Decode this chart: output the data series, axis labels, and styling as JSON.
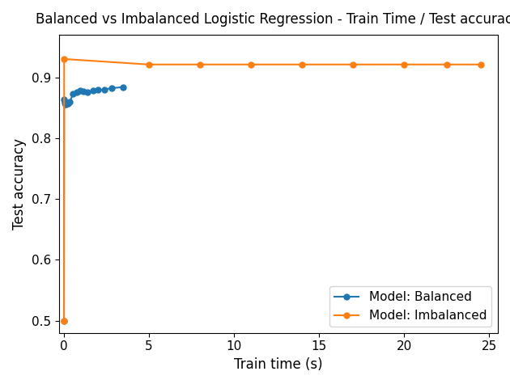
{
  "title": "Balanced vs Imbalanced Logistic Regression - Train Time / Test accuracy",
  "xlabel": "Train time (s)",
  "ylabel": "Test accuracy",
  "balanced": {
    "label": "Model: Balanced",
    "color": "#1f77b4",
    "x": [
      0.01,
      0.02,
      0.05,
      0.08,
      0.12,
      0.18,
      0.25,
      0.35,
      0.55,
      0.75,
      0.95,
      1.15,
      1.4,
      1.7,
      2.0,
      2.4,
      2.8,
      3.5
    ],
    "y": [
      0.5,
      0.863,
      0.858,
      0.856,
      0.855,
      0.857,
      0.857,
      0.86,
      0.873,
      0.876,
      0.878,
      0.877,
      0.875,
      0.878,
      0.879,
      0.88,
      0.882,
      0.884
    ]
  },
  "imbalanced": {
    "label": "Model: Imbalanced",
    "color": "#ff7f0e",
    "x": [
      0.01,
      0.02,
      5.0,
      8.0,
      11.0,
      14.0,
      17.0,
      20.0,
      22.5,
      24.5
    ],
    "y": [
      0.5,
      0.93,
      0.921,
      0.921,
      0.921,
      0.921,
      0.921,
      0.921,
      0.921,
      0.921
    ]
  },
  "xlim": [
    -0.3,
    25.5
  ],
  "ylim": [
    0.48,
    0.97
  ],
  "marker": "o",
  "markersize": 5,
  "linewidth": 1.5,
  "title_fontsize": 12,
  "label_fontsize": 12,
  "tick_fontsize": 11,
  "legend_fontsize": 11
}
